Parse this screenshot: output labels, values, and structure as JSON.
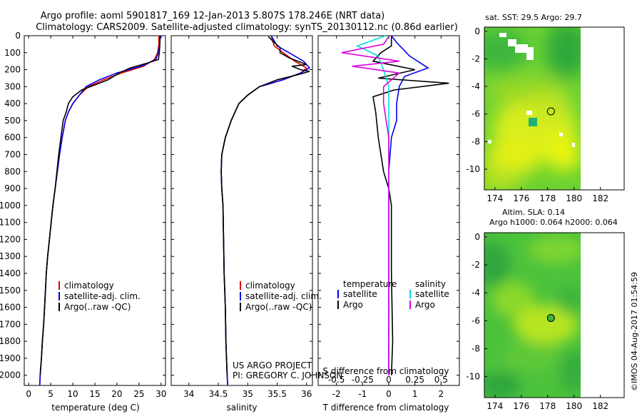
{
  "title_line1": "Argo profile: aoml 5901817_169 12-Jan-2013 5.807S 178.246E (NRT data)",
  "title_line2": "Climatology: CARS2009. Satellite-adjusted climatology: synTS_20130112.nc (0.86d earlier)",
  "sst_title": "sat. SST: 29.5 Argo: 29.7",
  "sla_title1": "Altim. SLA: 0.14",
  "sla_title2": "Argo h1000: 0.064 h2000: 0.064",
  "project_line1": "US ARGO PROJECT",
  "project_line2": "PI: GREGORY C. JOHNSON",
  "footer_stamp": "©IMOS 04-Aug-2017 01:54:59",
  "colors": {
    "clim": "#dd0000",
    "sat": "#0000ee",
    "argo": "#000000",
    "sat_s": "#00dddd",
    "argo_s": "#dd00dd"
  },
  "chart_data": [
    {
      "type": "line",
      "name": "temperature",
      "xlabel": "temperature (deg C)",
      "ylabel": "",
      "xlim": [
        -1,
        31
      ],
      "ylim": [
        2060,
        0
      ],
      "xticks": [
        0,
        5,
        10,
        15,
        20,
        25,
        30
      ],
      "yticks": [
        0,
        100,
        200,
        300,
        400,
        500,
        600,
        700,
        800,
        900,
        1000,
        1100,
        1200,
        1300,
        1400,
        1500,
        1600,
        1700,
        1800,
        1900,
        2000
      ],
      "legend": [
        "climatology",
        "satellite-adj. clim.",
        "Argo(..raw -QC)"
      ],
      "series": [
        {
          "name": "climatology",
          "key": "clim",
          "points": [
            [
              29.5,
              0
            ],
            [
              29.5,
              50
            ],
            [
              29.2,
              100
            ],
            [
              28.5,
              140
            ],
            [
              26,
              180
            ],
            [
              21,
              220
            ],
            [
              17,
              260
            ],
            [
              13.5,
              300
            ],
            [
              11.5,
              350
            ],
            [
              10,
              400
            ],
            [
              9,
              450
            ],
            [
              8.3,
              500
            ],
            [
              7.6,
              600
            ],
            [
              7,
              700
            ],
            [
              6.5,
              800
            ],
            [
              6,
              900
            ],
            [
              5.5,
              1000
            ],
            [
              5.1,
              1100
            ],
            [
              4.7,
              1200
            ],
            [
              4.3,
              1300
            ],
            [
              4,
              1400
            ],
            [
              3.8,
              1500
            ],
            [
              3.6,
              1600
            ],
            [
              3.4,
              1700
            ],
            [
              3.1,
              1800
            ],
            [
              2.9,
              1900
            ],
            [
              2.6,
              2000
            ],
            [
              2.5,
              2060
            ]
          ]
        },
        {
          "name": "satellite-adj. clim.",
          "key": "sat",
          "points": [
            [
              29.8,
              0
            ],
            [
              29.7,
              50
            ],
            [
              29.4,
              100
            ],
            [
              28.8,
              140
            ],
            [
              26,
              175
            ],
            [
              20,
              220
            ],
            [
              16,
              260
            ],
            [
              13,
              300
            ],
            [
              11.5,
              350
            ],
            [
              10,
              400
            ],
            [
              9,
              450
            ],
            [
              8.3,
              500
            ],
            [
              7.6,
              600
            ],
            [
              7,
              700
            ],
            [
              6.5,
              800
            ],
            [
              6,
              900
            ],
            [
              5.5,
              1000
            ],
            [
              5.1,
              1100
            ],
            [
              4.7,
              1200
            ],
            [
              4.3,
              1300
            ],
            [
              4,
              1400
            ],
            [
              3.8,
              1500
            ],
            [
              3.6,
              1600
            ],
            [
              3.4,
              1700
            ],
            [
              3.1,
              1800
            ],
            [
              2.9,
              1900
            ],
            [
              2.6,
              2000
            ],
            [
              2.5,
              2060
            ]
          ]
        },
        {
          "name": "Argo(..raw -QC)",
          "key": "argo",
          "points": [
            [
              29.7,
              5
            ],
            [
              29.7,
              60
            ],
            [
              29.6,
              100
            ],
            [
              29.4,
              140
            ],
            [
              27,
              160
            ],
            [
              23,
              190
            ],
            [
              20.5,
              220
            ],
            [
              18,
              260
            ],
            [
              14,
              300
            ],
            [
              12,
              320
            ],
            [
              10,
              360
            ],
            [
              9,
              400
            ],
            [
              8.5,
              450
            ],
            [
              7.8,
              500
            ],
            [
              7.3,
              600
            ],
            [
              6.8,
              700
            ],
            [
              6.4,
              800
            ],
            [
              6,
              900
            ],
            [
              5.5,
              1000
            ],
            [
              5.1,
              1100
            ],
            [
              4.7,
              1200
            ],
            [
              4.3,
              1300
            ],
            [
              4,
              1400
            ],
            [
              3.8,
              1500
            ],
            [
              3.6,
              1600
            ],
            [
              3.4,
              1700
            ],
            [
              3.1,
              1800
            ],
            [
              2.9,
              1900
            ],
            [
              2.6,
              2000
            ]
          ]
        }
      ]
    },
    {
      "type": "line",
      "name": "salinity",
      "xlabel": "salinity",
      "xlim": [
        33.7,
        36.1
      ],
      "ylim": [
        2060,
        0
      ],
      "xticks": [
        34,
        34.5,
        35,
        35.5,
        36
      ],
      "xticklabels": [
        "34",
        "34.5",
        "35",
        "35.5",
        "36"
      ],
      "legend": [
        "climatology",
        "satellite-adj. clim.",
        "Argo(..raw -QC)"
      ],
      "series": [
        {
          "name": "climatology",
          "key": "clim",
          "points": [
            [
              35.4,
              0
            ],
            [
              35.45,
              60
            ],
            [
              35.6,
              100
            ],
            [
              35.8,
              150
            ],
            [
              36.0,
              190
            ],
            [
              35.9,
              220
            ],
            [
              35.6,
              260
            ],
            [
              35.2,
              300
            ],
            [
              35.0,
              350
            ],
            [
              34.85,
              400
            ],
            [
              34.72,
              500
            ],
            [
              34.62,
              600
            ],
            [
              34.56,
              700
            ],
            [
              34.55,
              800
            ],
            [
              34.56,
              900
            ],
            [
              34.58,
              1000
            ],
            [
              34.59,
              1200
            ],
            [
              34.6,
              1400
            ],
            [
              34.62,
              1600
            ],
            [
              34.63,
              1800
            ],
            [
              34.65,
              2000
            ],
            [
              34.66,
              2060
            ]
          ]
        },
        {
          "name": "satellite-adj. clim.",
          "key": "sat",
          "points": [
            [
              35.4,
              0
            ],
            [
              35.5,
              60
            ],
            [
              35.7,
              100
            ],
            [
              35.95,
              150
            ],
            [
              36.05,
              190
            ],
            [
              35.9,
              220
            ],
            [
              35.6,
              260
            ],
            [
              35.2,
              300
            ],
            [
              35.0,
              350
            ],
            [
              34.85,
              400
            ],
            [
              34.72,
              500
            ],
            [
              34.62,
              600
            ],
            [
              34.56,
              700
            ],
            [
              34.55,
              800
            ],
            [
              34.56,
              900
            ],
            [
              34.58,
              1000
            ],
            [
              34.59,
              1200
            ],
            [
              34.6,
              1400
            ],
            [
              34.62,
              1600
            ],
            [
              34.63,
              1800
            ],
            [
              34.65,
              2000
            ],
            [
              34.66,
              2060
            ]
          ]
        },
        {
          "name": "Argo(..raw -QC)",
          "key": "argo",
          "points": [
            [
              35.35,
              5
            ],
            [
              35.45,
              40
            ],
            [
              35.55,
              70
            ],
            [
              35.55,
              100
            ],
            [
              35.7,
              130
            ],
            [
              35.85,
              150
            ],
            [
              36.0,
              170
            ],
            [
              35.75,
              180
            ],
            [
              35.9,
              200
            ],
            [
              36.05,
              210
            ],
            [
              35.85,
              230
            ],
            [
              35.5,
              260
            ],
            [
              35.2,
              300
            ],
            [
              35.0,
              350
            ],
            [
              34.85,
              400
            ],
            [
              34.72,
              500
            ],
            [
              34.62,
              600
            ],
            [
              34.56,
              700
            ],
            [
              34.55,
              800
            ],
            [
              34.56,
              900
            ],
            [
              34.58,
              1000
            ],
            [
              34.59,
              1200
            ],
            [
              34.6,
              1400
            ],
            [
              34.62,
              1600
            ],
            [
              34.63,
              1800
            ],
            [
              34.65,
              2000
            ]
          ]
        }
      ]
    },
    {
      "type": "line",
      "name": "difference",
      "xlabel_top": "S difference from climatology",
      "xlabel": "T difference from climatology",
      "xlim": [
        -2.7,
        2.7
      ],
      "ylim": [
        2060,
        0
      ],
      "xticks": [
        -2,
        -1,
        0,
        1,
        2
      ],
      "xticks_top": [
        -0.5,
        -0.25,
        0,
        0.25,
        0.5
      ],
      "xticklabels_top": [
        "-0.5",
        "-0.25",
        "0",
        "0.25",
        "0.5"
      ],
      "legend_temperature_title": "temperature",
      "legend_salinity_title": "salinity",
      "legend": [
        "satellite",
        "Argo",
        "satellite",
        "Argo"
      ],
      "series": [
        {
          "name": "temperature satellite",
          "key": "sat",
          "points": [
            [
              0.1,
              0
            ],
            [
              0.3,
              40
            ],
            [
              0.8,
              120
            ],
            [
              1.5,
              190
            ],
            [
              0.6,
              240
            ],
            [
              0.4,
              300
            ],
            [
              0.3,
              400
            ],
            [
              0.3,
              500
            ],
            [
              0.1,
              600
            ],
            [
              0.0,
              800
            ],
            [
              0.0,
              1000
            ],
            [
              0.0,
              1500
            ],
            [
              0.0,
              2000
            ]
          ]
        },
        {
          "name": "temperature Argo",
          "key": "argo",
          "points": [
            [
              0.1,
              5
            ],
            [
              0.1,
              60
            ],
            [
              -0.3,
              100
            ],
            [
              -0.6,
              150
            ],
            [
              1.0,
              200
            ],
            [
              -0.4,
              250
            ],
            [
              2.3,
              280
            ],
            [
              0.2,
              320
            ],
            [
              -0.6,
              360
            ],
            [
              -0.5,
              450
            ],
            [
              -0.4,
              600
            ],
            [
              -0.3,
              700
            ],
            [
              -0.2,
              800
            ],
            [
              0.0,
              900
            ],
            [
              0.1,
              1000
            ],
            [
              0.1,
              1400
            ],
            [
              0.15,
              1800
            ],
            [
              0.1,
              2000
            ]
          ]
        },
        {
          "name": "salinity satellite",
          "key": "sat_s",
          "points": [
            [
              -0.03,
              0
            ],
            [
              -0.3,
              60
            ],
            [
              -0.1,
              120
            ],
            [
              -0.05,
              200
            ],
            [
              0.0,
              300
            ],
            [
              0.0,
              400
            ],
            [
              0.0,
              600
            ],
            [
              0.0,
              1000
            ],
            [
              0.0,
              1500
            ],
            [
              0.0,
              2000
            ]
          ]
        },
        {
          "name": "salinity Argo",
          "key": "argo_s",
          "points": [
            [
              0.0,
              5
            ],
            [
              -0.05,
              50
            ],
            [
              -0.45,
              100
            ],
            [
              0.1,
              150
            ],
            [
              -0.35,
              180
            ],
            [
              0.1,
              220
            ],
            [
              -0.05,
              300
            ],
            [
              -0.05,
              400
            ],
            [
              0.0,
              600
            ],
            [
              0.0,
              1000
            ],
            [
              0.0,
              1500
            ],
            [
              0.0,
              2000
            ]
          ]
        }
      ]
    }
  ],
  "map_sst": {
    "title": "sat. SST: 29.5 Argo: 29.7",
    "xlim": [
      173.2,
      183.8
    ],
    "ylim": [
      -11.5,
      0.3
    ],
    "xticks": [
      174,
      176,
      178,
      180,
      182
    ],
    "yticks": [
      0,
      -2,
      -4,
      -6,
      -8,
      -10
    ],
    "float": [
      178.246,
      -5.807
    ]
  },
  "map_sla": {
    "title": "Altim. SLA: 0.14",
    "xlim": [
      173.2,
      183.8
    ],
    "ylim": [
      -11.5,
      0.3
    ],
    "xticks": [
      174,
      176,
      178,
      180,
      182
    ],
    "yticks": [
      0,
      -2,
      -4,
      -6,
      -8,
      -10
    ],
    "float": [
      178.246,
      -5.807
    ]
  }
}
